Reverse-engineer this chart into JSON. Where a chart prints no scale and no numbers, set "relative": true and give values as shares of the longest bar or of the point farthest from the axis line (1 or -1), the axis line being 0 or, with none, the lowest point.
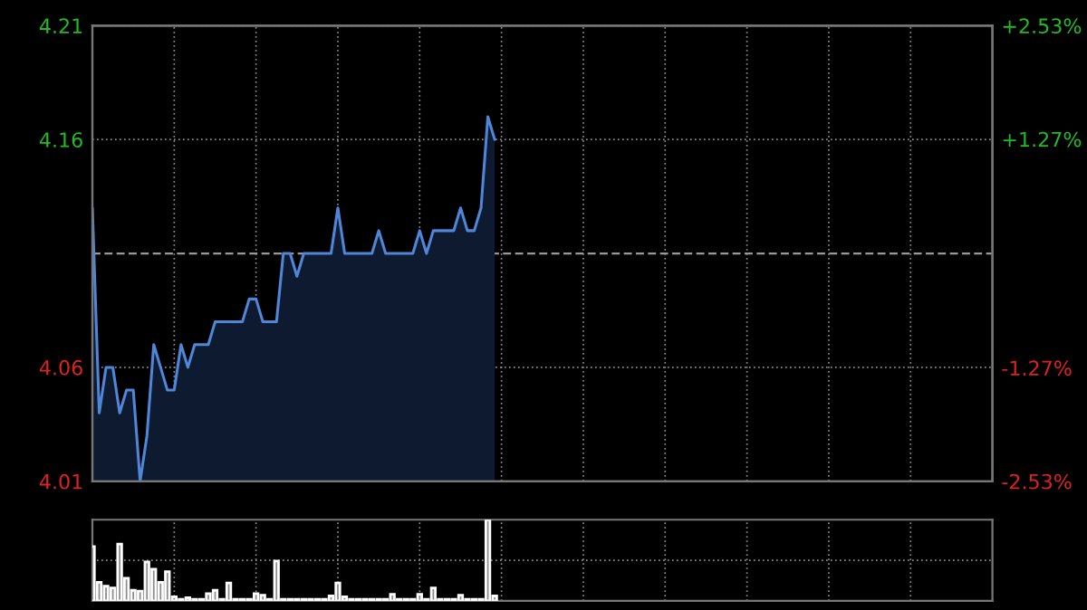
{
  "chart_data": [
    {
      "type": "area",
      "categories": [
        null,
        null,
        null,
        null,
        null,
        null,
        null,
        null,
        null,
        null,
        null,
        null,
        null,
        null,
        null,
        null,
        null,
        null,
        null,
        null,
        null,
        null,
        null,
        null,
        null,
        null,
        null,
        null,
        null,
        null,
        null,
        null,
        null,
        null,
        null,
        null,
        null,
        null,
        null,
        null,
        null,
        null,
        null,
        null,
        null,
        null,
        null,
        null,
        null,
        null,
        null,
        null,
        null,
        null,
        null,
        null,
        null,
        null,
        null,
        null,
        null,
        null,
        null,
        null,
        null,
        null,
        null,
        null,
        null,
        null,
        null,
        null,
        null,
        null,
        null,
        null,
        null,
        null,
        null,
        null,
        null,
        null,
        null,
        null,
        null,
        null,
        null,
        null,
        null,
        null,
        null,
        null,
        null,
        null,
        null,
        null,
        null,
        null,
        null,
        null,
        null,
        null,
        null,
        null,
        null,
        null,
        null,
        null,
        null,
        null,
        null,
        null,
        null,
        null,
        null,
        null,
        null,
        null,
        null,
        null,
        null,
        null,
        null,
        null,
        null,
        null,
        null,
        null,
        null,
        null,
        null,
        null,
        null
      ],
      "series": [
        {
          "color": "#4f86d8",
          "values": [
            4.13,
            4.04,
            4.06,
            4.06,
            4.04,
            4.05,
            4.05,
            4.01,
            4.03,
            4.07,
            4.06,
            4.05,
            4.05,
            4.07,
            4.06,
            4.07,
            4.07,
            4.07,
            4.08,
            4.08,
            4.08,
            4.08,
            4.08,
            4.09,
            4.09,
            4.08,
            4.08,
            4.08,
            4.11,
            4.11,
            4.1,
            4.11,
            4.11,
            4.11,
            4.11,
            4.11,
            4.13,
            4.11,
            4.11,
            4.11,
            4.11,
            4.11,
            4.12,
            4.11,
            4.11,
            4.11,
            4.11,
            4.11,
            4.12,
            4.11,
            4.12,
            4.12,
            4.12,
            4.12,
            4.13,
            4.12,
            4.12,
            4.13,
            4.17,
            4.16,
            null,
            null,
            null,
            null,
            null,
            null,
            null,
            null,
            null,
            null,
            null,
            null,
            null,
            null,
            null,
            null,
            null,
            null,
            null,
            null,
            null,
            null,
            null,
            null,
            null,
            null,
            null,
            null,
            null,
            null,
            null,
            null,
            null,
            null,
            null,
            null,
            null,
            null,
            null,
            null,
            null,
            null,
            null,
            null,
            null,
            null,
            null,
            null,
            null,
            null,
            null,
            null,
            null,
            null,
            null,
            null,
            null,
            null,
            null,
            null,
            null,
            null,
            null,
            null,
            null,
            null,
            null,
            null,
            null,
            null,
            null,
            null,
            null
          ]
        }
      ],
      "ylim": [
        4.01,
        4.21
      ],
      "yticks": [
        4.01,
        4.06,
        4.16,
        4.21
      ],
      "y2lim": [
        -2.53,
        2.53
      ],
      "y2ticks": [
        {
          "value": -2.53,
          "label": "-2.53%"
        },
        {
          "value": -1.27,
          "label": "-1.27%"
        },
        {
          "value": 1.27,
          "label": "+1.27%"
        },
        {
          "value": 2.53,
          "label": "+2.53%"
        }
      ],
      "ref_lines": [
        {
          "axis": "y",
          "value": 4.11,
          "color": "#999999",
          "line_style": "dashed"
        }
      ],
      "grid": true,
      "tick_labels": "y"
    },
    {
      "type": "bar",
      "relative": true,
      "categories": [
        null,
        null,
        null,
        null,
        null,
        null,
        null,
        null,
        null,
        null,
        null,
        null,
        null,
        null,
        null,
        null,
        null,
        null,
        null,
        null,
        null,
        null,
        null,
        null,
        null,
        null,
        null,
        null,
        null,
        null,
        null,
        null,
        null,
        null,
        null,
        null,
        null,
        null,
        null,
        null,
        null,
        null,
        null,
        null,
        null,
        null,
        null,
        null,
        null,
        null,
        null,
        null,
        null,
        null,
        null,
        null,
        null,
        null,
        null,
        null,
        null,
        null,
        null,
        null,
        null,
        null,
        null,
        null,
        null,
        null,
        null,
        null,
        null,
        null,
        null,
        null,
        null,
        null,
        null,
        null,
        null,
        null,
        null,
        null,
        null,
        null,
        null,
        null,
        null,
        null,
        null,
        null,
        null,
        null,
        null,
        null,
        null,
        null,
        null,
        null,
        null,
        null,
        null,
        null,
        null,
        null,
        null,
        null,
        null,
        null,
        null,
        null,
        null,
        null,
        null,
        null,
        null,
        null,
        null,
        null,
        null,
        null,
        null,
        null,
        null,
        null,
        null,
        null,
        null,
        null,
        null,
        null,
        null
      ],
      "series": [
        {
          "color": "#8c8c8c",
          "values": [
            0.67,
            0.23,
            0.18,
            0.16,
            0.7,
            0.28,
            0.13,
            0.12,
            0.48,
            0.39,
            0.23,
            0.36,
            0.05,
            0.02,
            0.04,
            0.02,
            0.02,
            0.09,
            0.13,
            0.02,
            0.22,
            0.02,
            0.02,
            0.02,
            0.09,
            0.07,
            0.02,
            0.49,
            0.02,
            0.02,
            0.02,
            0.02,
            0.02,
            0.02,
            0.02,
            0.06,
            0.22,
            0.05,
            0.02,
            0.02,
            0.02,
            0.02,
            0.02,
            0.02,
            0.08,
            0.02,
            0.02,
            0.02,
            0.08,
            0.02,
            0.16,
            0.02,
            0.02,
            0.02,
            0.07,
            0.02,
            0.02,
            0.02,
            1,
            0.06,
            null,
            null,
            null,
            null,
            null,
            null,
            null,
            null,
            null,
            null,
            null,
            null,
            null,
            null,
            null,
            null,
            null,
            null,
            null,
            null,
            null,
            null,
            null,
            null,
            null,
            null,
            null,
            null,
            null,
            null,
            null,
            null,
            null,
            null,
            null,
            null,
            null,
            null,
            null,
            null,
            null,
            null,
            null,
            null,
            null,
            null,
            null,
            null,
            null,
            null,
            null,
            null,
            null,
            null,
            null,
            null,
            null,
            null,
            null,
            null,
            null,
            null,
            null,
            null,
            null,
            null,
            null,
            null,
            null,
            null,
            null,
            null,
            null
          ]
        }
      ],
      "grid": true,
      "tick_labels": false
    }
  ]
}
